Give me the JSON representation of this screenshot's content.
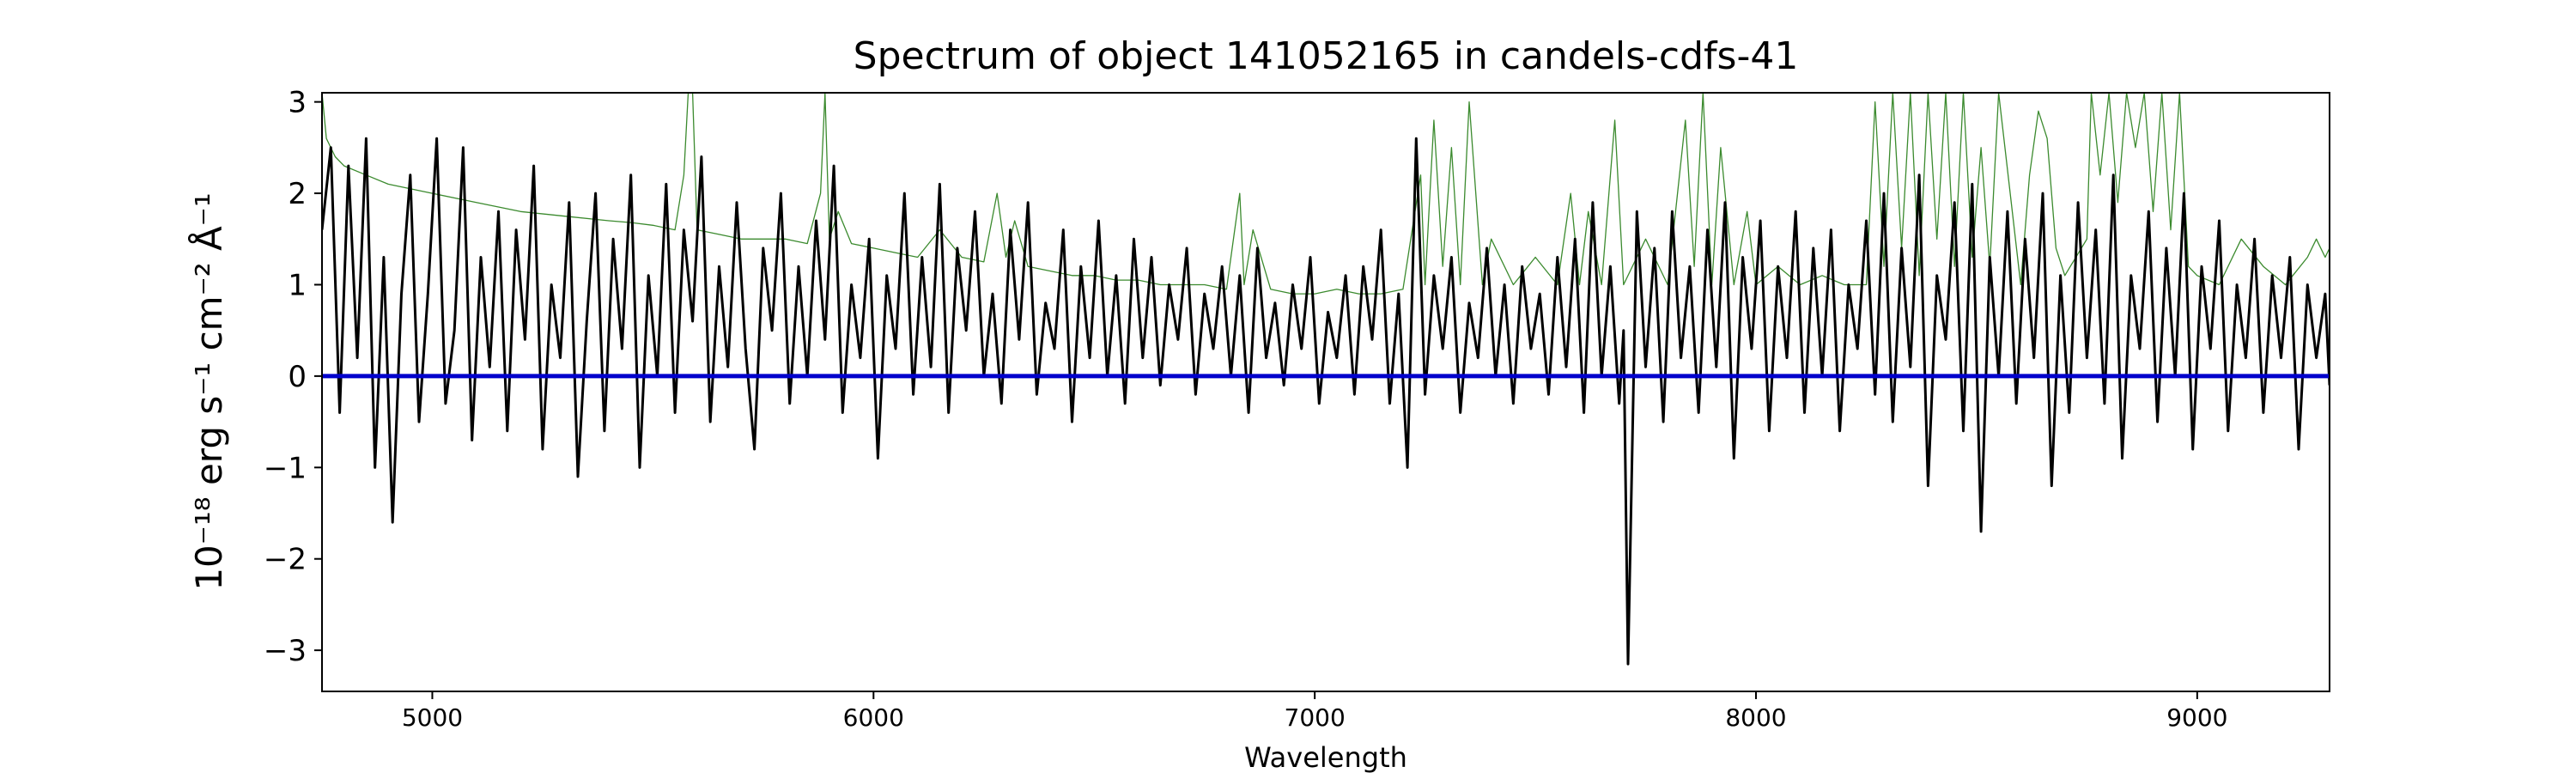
{
  "chart_data": {
    "type": "line",
    "title": "Spectrum of object 141052165 in candels-cdfs-41",
    "xlabel": "Wavelength",
    "ylabel": "10⁻¹⁸ erg s⁻¹ cm⁻² Å⁻¹",
    "xlim": [
      4750,
      9300
    ],
    "ylim": [
      -3.45,
      3.1
    ],
    "xticks": [
      5000,
      6000,
      7000,
      8000,
      9000
    ],
    "xtick_labels": [
      "5000",
      "6000",
      "7000",
      "8000",
      "9000"
    ],
    "yticks": [
      -3,
      -2,
      -1,
      0,
      1,
      2,
      3
    ],
    "ytick_labels": [
      "−3",
      "−2",
      "−1",
      "0",
      "1",
      "2",
      "3"
    ],
    "grid": false,
    "series": [
      {
        "color": "#000000",
        "x": [
          4750,
          4770,
          4790,
          4810,
          4830,
          4850,
          4870,
          4890,
          4910,
          4930,
          4950,
          4970,
          4990,
          5010,
          5030,
          5050,
          5070,
          5090,
          5110,
          5130,
          5150,
          5170,
          5190,
          5210,
          5230,
          5250,
          5270,
          5290,
          5310,
          5330,
          5350,
          5370,
          5390,
          5410,
          5430,
          5450,
          5470,
          5490,
          5510,
          5530,
          5550,
          5570,
          5590,
          5610,
          5630,
          5650,
          5670,
          5690,
          5710,
          5730,
          5750,
          5770,
          5790,
          5810,
          5830,
          5850,
          5870,
          5890,
          5910,
          5930,
          5950,
          5970,
          5990,
          6010,
          6030,
          6050,
          6070,
          6090,
          6110,
          6130,
          6150,
          6170,
          6190,
          6210,
          6230,
          6250,
          6270,
          6290,
          6310,
          6330,
          6350,
          6370,
          6390,
          6410,
          6430,
          6450,
          6470,
          6490,
          6510,
          6530,
          6550,
          6570,
          6590,
          6610,
          6630,
          6650,
          6670,
          6690,
          6710,
          6730,
          6750,
          6770,
          6790,
          6810,
          6830,
          6850,
          6870,
          6890,
          6910,
          6930,
          6950,
          6970,
          6990,
          7010,
          7030,
          7050,
          7070,
          7090,
          7110,
          7130,
          7150,
          7170,
          7190,
          7210,
          7230,
          7250,
          7270,
          7290,
          7310,
          7330,
          7350,
          7370,
          7390,
          7410,
          7430,
          7450,
          7470,
          7490,
          7510,
          7530,
          7550,
          7570,
          7590,
          7610,
          7630,
          7650,
          7670,
          7690,
          7700,
          7710,
          7730,
          7750,
          7770,
          7790,
          7810,
          7830,
          7850,
          7870,
          7890,
          7910,
          7930,
          7950,
          7970,
          7990,
          8010,
          8030,
          8050,
          8070,
          8090,
          8110,
          8130,
          8150,
          8170,
          8190,
          8210,
          8230,
          8250,
          8270,
          8290,
          8310,
          8330,
          8350,
          8370,
          8390,
          8410,
          8430,
          8450,
          8470,
          8490,
          8510,
          8530,
          8550,
          8570,
          8590,
          8610,
          8630,
          8650,
          8670,
          8690,
          8710,
          8730,
          8750,
          8770,
          8790,
          8810,
          8830,
          8850,
          8870,
          8890,
          8910,
          8930,
          8950,
          8970,
          8990,
          9010,
          9030,
          9050,
          9070,
          9090,
          9110,
          9130,
          9150,
          9170,
          9190,
          9210,
          9230,
          9250,
          9270,
          9290,
          9300
        ],
        "y": [
          1.6,
          2.5,
          -0.4,
          2.3,
          0.2,
          2.6,
          -1.0,
          1.3,
          -1.6,
          0.9,
          2.2,
          -0.5,
          0.9,
          2.6,
          -0.3,
          0.5,
          2.5,
          -0.7,
          1.3,
          0.1,
          1.8,
          -0.6,
          1.6,
          0.4,
          2.3,
          -0.8,
          1.0,
          0.2,
          1.9,
          -1.1,
          0.6,
          2.0,
          -0.6,
          1.5,
          0.3,
          2.2,
          -1.0,
          1.1,
          0.0,
          2.1,
          -0.4,
          1.6,
          0.6,
          2.4,
          -0.5,
          1.2,
          0.1,
          1.9,
          0.3,
          -0.8,
          1.4,
          0.5,
          2.0,
          -0.3,
          1.2,
          0.0,
          1.7,
          0.4,
          2.3,
          -0.4,
          1.0,
          0.2,
          1.5,
          -0.9,
          1.1,
          0.3,
          2.0,
          -0.2,
          1.3,
          0.1,
          2.1,
          -0.4,
          1.4,
          0.5,
          1.8,
          0.0,
          0.9,
          -0.3,
          1.6,
          0.4,
          1.9,
          -0.2,
          0.8,
          0.3,
          1.6,
          -0.5,
          1.2,
          0.2,
          1.7,
          0.0,
          1.1,
          -0.3,
          1.5,
          0.2,
          1.3,
          -0.1,
          1.0,
          0.4,
          1.4,
          -0.2,
          0.9,
          0.3,
          1.2,
          0.0,
          1.1,
          -0.4,
          1.4,
          0.2,
          0.8,
          -0.1,
          1.0,
          0.3,
          1.3,
          -0.3,
          0.7,
          0.2,
          1.1,
          -0.2,
          1.2,
          0.4,
          1.6,
          -0.3,
          0.9,
          -1.0,
          2.6,
          -0.2,
          1.1,
          0.3,
          1.3,
          -0.4,
          0.8,
          0.2,
          1.4,
          0.0,
          1.0,
          -0.3,
          1.2,
          0.3,
          0.9,
          -0.2,
          1.3,
          0.1,
          1.5,
          -0.4,
          1.9,
          0.0,
          1.2,
          -0.3,
          0.5,
          -3.15,
          1.8,
          0.1,
          1.4,
          -0.5,
          1.8,
          0.2,
          1.2,
          -0.4,
          1.6,
          0.1,
          1.9,
          -0.9,
          1.3,
          0.3,
          1.7,
          -0.6,
          1.2,
          0.2,
          1.8,
          -0.4,
          1.4,
          0.0,
          1.6,
          -0.6,
          1.0,
          0.3,
          1.7,
          -0.2,
          2.0,
          -0.5,
          1.4,
          0.1,
          2.2,
          -1.2,
          1.1,
          0.4,
          1.9,
          -0.6,
          2.1,
          -1.7,
          1.3,
          0.0,
          1.8,
          -0.3,
          1.5,
          0.2,
          2.0,
          -1.2,
          1.1,
          -0.4,
          1.9,
          0.2,
          1.6,
          -0.3,
          2.2,
          -0.9,
          1.1,
          0.3,
          1.8,
          -0.5,
          1.4,
          0.0,
          2.0,
          -0.8,
          1.2,
          0.3,
          1.7,
          -0.6,
          1.0,
          0.2,
          1.5,
          -0.4,
          1.1,
          0.2,
          1.3,
          -0.8,
          1.0,
          0.2,
          0.9,
          -0.1
        ]
      },
      {
        "color": "#3b8a2e",
        "x": [
          4750,
          4760,
          4780,
          4800,
          4850,
          4900,
          5000,
          5100,
          5200,
          5300,
          5400,
          5450,
          5500,
          5550,
          5570,
          5580,
          5590,
          5600,
          5650,
          5700,
          5750,
          5800,
          5850,
          5880,
          5890,
          5900,
          5920,
          5950,
          6000,
          6050,
          6100,
          6150,
          6200,
          6250,
          6280,
          6300,
          6320,
          6350,
          6400,
          6450,
          6500,
          6550,
          6600,
          6650,
          6700,
          6750,
          6800,
          6830,
          6840,
          6860,
          6900,
          6950,
          7000,
          7050,
          7100,
          7150,
          7200,
          7240,
          7250,
          7270,
          7290,
          7310,
          7330,
          7350,
          7380,
          7400,
          7450,
          7500,
          7550,
          7580,
          7600,
          7620,
          7650,
          7680,
          7700,
          7750,
          7800,
          7840,
          7860,
          7880,
          7900,
          7920,
          7950,
          7980,
          8000,
          8050,
          8100,
          8150,
          8200,
          8250,
          8270,
          8290,
          8310,
          8330,
          8350,
          8370,
          8390,
          8410,
          8430,
          8450,
          8470,
          8490,
          8510,
          8530,
          8550,
          8600,
          8620,
          8640,
          8660,
          8680,
          8700,
          8750,
          8760,
          8780,
          8800,
          8820,
          8840,
          8860,
          8880,
          8900,
          8920,
          8940,
          8960,
          8980,
          9000,
          9050,
          9100,
          9150,
          9200,
          9250,
          9270,
          9290,
          9300
        ],
        "y": [
          3.1,
          2.6,
          2.4,
          2.3,
          2.2,
          2.1,
          2.0,
          1.9,
          1.8,
          1.75,
          1.7,
          1.68,
          1.65,
          1.6,
          2.2,
          3.1,
          3.1,
          1.6,
          1.55,
          1.5,
          1.5,
          1.5,
          1.45,
          2.0,
          3.1,
          1.5,
          1.8,
          1.45,
          1.4,
          1.35,
          1.3,
          1.6,
          1.3,
          1.25,
          2.0,
          1.3,
          1.7,
          1.2,
          1.15,
          1.1,
          1.1,
          1.05,
          1.05,
          1.0,
          1.0,
          1.0,
          0.95,
          2.0,
          1.0,
          1.6,
          0.95,
          0.9,
          0.9,
          0.95,
          0.9,
          0.9,
          0.95,
          2.2,
          1.0,
          2.8,
          1.2,
          2.5,
          1.0,
          3.0,
          1.0,
          1.5,
          1.0,
          1.3,
          1.0,
          2.0,
          1.0,
          1.8,
          1.0,
          2.8,
          1.0,
          1.5,
          1.0,
          2.8,
          1.2,
          3.1,
          1.0,
          2.5,
          1.0,
          1.8,
          1.0,
          1.2,
          1.0,
          1.1,
          1.0,
          1.0,
          3.0,
          1.2,
          3.1,
          1.4,
          3.1,
          1.1,
          3.1,
          1.5,
          3.1,
          1.2,
          3.1,
          1.3,
          2.5,
          1.2,
          3.1,
          1.0,
          2.2,
          2.9,
          2.6,
          1.4,
          1.1,
          1.5,
          3.1,
          2.2,
          3.1,
          1.9,
          3.1,
          2.5,
          3.1,
          1.8,
          3.1,
          1.6,
          3.1,
          1.2,
          1.1,
          1.0,
          1.5,
          1.2,
          1.0,
          1.3,
          1.5,
          1.3,
          1.4
        ]
      },
      {
        "color": "#0000cc",
        "x": [
          4750,
          9300
        ],
        "y": [
          0.0,
          0.0
        ]
      }
    ]
  }
}
